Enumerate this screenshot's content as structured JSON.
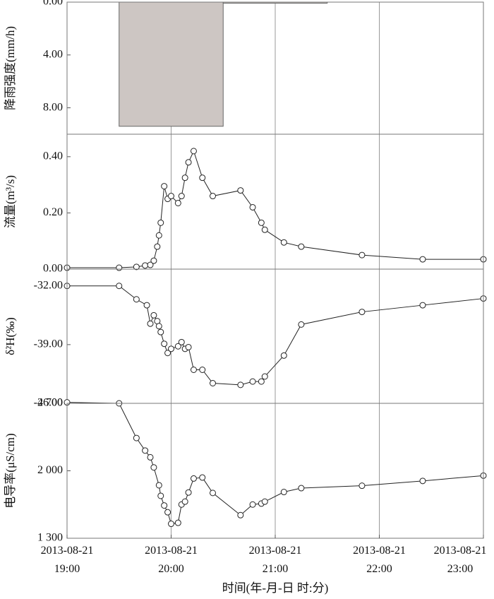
{
  "chart_data": [
    {
      "type": "histogram",
      "ylabel": "降雨强度(mm/h)",
      "color": "#cdc6c3",
      "bins": [
        "2013-08-21 19:30",
        "2013-08-21 20:30",
        "2013-08-21 21:30"
      ],
      "values": [
        9.4,
        0.08
      ],
      "xlim": [
        "2013-08-21 19:00",
        "2013-08-21 23:00"
      ],
      "ylim": [
        0,
        10
      ],
      "yinverted": true,
      "yticks": [
        {
          "value": 0,
          "label": "0.00"
        },
        {
          "value": 4,
          "label": "4.00"
        },
        {
          "value": 8,
          "label": "8.00"
        }
      ]
    },
    {
      "type": "line",
      "ylabel": "流量(m³/s)",
      "color": "#222222",
      "x": [
        "2013-08-21 19:00",
        "2013-08-21 19:30",
        "2013-08-21 19:40",
        "2013-08-21 19:45",
        "2013-08-21 19:48",
        "2013-08-21 19:50",
        "2013-08-21 19:52",
        "2013-08-21 19:53",
        "2013-08-21 19:54",
        "2013-08-21 19:56",
        "2013-08-21 19:58",
        "2013-08-21 20:00",
        "2013-08-21 20:04",
        "2013-08-21 20:06",
        "2013-08-21 20:08",
        "2013-08-21 20:10",
        "2013-08-21 20:13",
        "2013-08-21 20:18",
        "2013-08-21 20:24",
        "2013-08-21 20:40",
        "2013-08-21 20:47",
        "2013-08-21 20:52",
        "2013-08-21 20:54",
        "2013-08-21 21:05",
        "2013-08-21 21:15",
        "2013-08-21 21:50",
        "2013-08-21 22:25",
        "2013-08-21 23:00"
      ],
      "values": [
        0.005,
        0.005,
        0.008,
        0.013,
        0.015,
        0.03,
        0.08,
        0.12,
        0.165,
        0.295,
        0.25,
        0.26,
        0.235,
        0.26,
        0.325,
        0.38,
        0.42,
        0.325,
        0.26,
        0.28,
        0.22,
        0.165,
        0.14,
        0.095,
        0.08,
        0.05,
        0.035,
        0.035
      ],
      "xlim": [
        "2013-08-21 19:00",
        "2013-08-21 23:00"
      ],
      "ylim": [
        0,
        0.48
      ],
      "yticks": [
        {
          "value": 0,
          "label": "0.00"
        },
        {
          "value": 0.2,
          "label": "0.20"
        },
        {
          "value": 0.4,
          "label": "0.40"
        }
      ]
    },
    {
      "type": "line",
      "ylabel": "δ²H(‰)",
      "color": "#222222",
      "x": [
        "2013-08-21 19:00",
        "2013-08-21 19:30",
        "2013-08-21 19:40",
        "2013-08-21 19:46",
        "2013-08-21 19:48",
        "2013-08-21 19:50",
        "2013-08-21 19:52",
        "2013-08-21 19:53",
        "2013-08-21 19:54",
        "2013-08-21 19:56",
        "2013-08-21 19:58",
        "2013-08-21 20:00",
        "2013-08-21 20:04",
        "2013-08-21 20:06",
        "2013-08-21 20:08",
        "2013-08-21 20:10",
        "2013-08-21 20:13",
        "2013-08-21 20:18",
        "2013-08-21 20:24",
        "2013-08-21 20:40",
        "2013-08-21 20:47",
        "2013-08-21 20:52",
        "2013-08-21 20:54",
        "2013-08-21 21:05",
        "2013-08-21 21:15",
        "2013-08-21 21:50",
        "2013-08-21 22:25",
        "2013-08-21 23:00"
      ],
      "values": [
        -32,
        -32,
        -33.6,
        -34.3,
        -36.5,
        -35.5,
        -36.2,
        -36.8,
        -37.5,
        -38.9,
        -40,
        -39.5,
        -39.2,
        -38.7,
        -39.5,
        -39.3,
        -42,
        -42,
        -43.6,
        -43.8,
        -43.4,
        -43.4,
        -42.8,
        -40.3,
        -36.6,
        -35.1,
        -34.3,
        -33.5
      ],
      "xlim": [
        "2013-08-21 19:00",
        "2013-08-21 23:00"
      ],
      "ylim": [
        -46,
        -30
      ],
      "yticks": [
        {
          "value": -32,
          "label": "-32.00"
        },
        {
          "value": -39,
          "label": "-39.00"
        },
        {
          "value": -46,
          "label": "-46.00"
        }
      ]
    },
    {
      "type": "line",
      "ylabel": "电导率(μS/cm)",
      "xlabel": "时间(年-月-日 时:分)",
      "color": "#222222",
      "x": [
        "2013-08-21 19:00",
        "2013-08-21 19:30",
        "2013-08-21 19:40",
        "2013-08-21 19:45",
        "2013-08-21 19:48",
        "2013-08-21 19:50",
        "2013-08-21 19:53",
        "2013-08-21 19:54",
        "2013-08-21 19:56",
        "2013-08-21 19:58",
        "2013-08-21 20:00",
        "2013-08-21 20:04",
        "2013-08-21 20:06",
        "2013-08-21 20:08",
        "2013-08-21 20:10",
        "2013-08-21 20:13",
        "2013-08-21 20:18",
        "2013-08-21 20:24",
        "2013-08-21 20:40",
        "2013-08-21 20:47",
        "2013-08-21 20:52",
        "2013-08-21 20:54",
        "2013-08-21 21:05",
        "2013-08-21 21:15",
        "2013-08-21 21:50",
        "2013-08-21 22:25",
        "2013-08-21 23:00"
      ],
      "values": [
        2710,
        2700,
        2340,
        2210,
        2140,
        2035,
        1850,
        1740,
        1640,
        1570,
        1450,
        1460,
        1650,
        1680,
        1775,
        1920,
        1930,
        1770,
        1540,
        1650,
        1660,
        1680,
        1780,
        1820,
        1845,
        1895,
        1950
      ],
      "xlim": [
        "2013-08-21 19:00",
        "2013-08-21 23:00"
      ],
      "ylim": [
        1300,
        2700
      ],
      "yticks": [
        {
          "value": 2700,
          "label": "2 700"
        },
        {
          "value": 2000,
          "label": "2 000"
        },
        {
          "value": 1300,
          "label": "1 300"
        }
      ],
      "xticks": [
        "2013-08-21 19:00",
        "2013-08-21 20:00",
        "2013-08-21 21:00",
        "2013-08-21 22:00",
        "2013-08-21 23:00"
      ]
    }
  ]
}
